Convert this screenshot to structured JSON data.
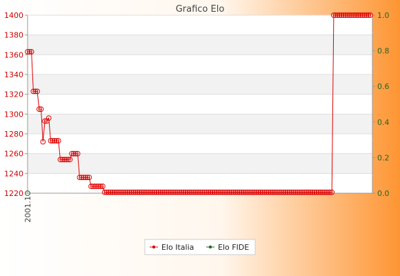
{
  "chart_data": {
    "type": "line",
    "title": "Grafico Elo",
    "legend_position": "bottom",
    "y_left": {
      "min": 1220,
      "max": 1400,
      "ticks": [
        "1220",
        "1240",
        "1260",
        "1280",
        "1300",
        "1320",
        "1340",
        "1360",
        "1380",
        "1400"
      ],
      "tick_color": "#cc0000"
    },
    "y_right": {
      "min": 0.0,
      "max": 1.0,
      "ticks": [
        "0.0",
        "0.2",
        "0.4",
        "0.6",
        "0.8",
        "1.0"
      ],
      "tick_color": "#226622"
    },
    "x_tick_labels": [
      "2001.1"
    ],
    "grid": true,
    "series": [
      {
        "name": "Elo Italia",
        "axis": "left",
        "color": "#dd0000",
        "values": [
          1363,
          1363,
          1363,
          1323,
          1323,
          1323,
          1305,
          1305,
          1272,
          1293,
          1293,
          1296,
          1273,
          1273,
          1273,
          1273,
          1273,
          1254,
          1254,
          1254,
          1254,
          1254,
          1254,
          1260,
          1260,
          1260,
          1260,
          1236,
          1236,
          1236,
          1236,
          1236,
          1236,
          1227,
          1227,
          1227,
          1227,
          1227,
          1227,
          1227,
          1221,
          1221,
          1221,
          1221,
          1221,
          1221,
          1221,
          1221,
          1221,
          1221,
          1221,
          1221,
          1221,
          1221,
          1221,
          1221,
          1221,
          1221,
          1221,
          1221,
          1221,
          1221,
          1221,
          1221,
          1221,
          1221,
          1221,
          1221,
          1221,
          1221,
          1221,
          1221,
          1221,
          1221,
          1221,
          1221,
          1221,
          1221,
          1221,
          1221,
          1221,
          1221,
          1221,
          1221,
          1221,
          1221,
          1221,
          1221,
          1221,
          1221,
          1221,
          1221,
          1221,
          1221,
          1221,
          1221,
          1221,
          1221,
          1221,
          1221,
          1221,
          1221,
          1221,
          1221,
          1221,
          1221,
          1221,
          1221,
          1221,
          1221,
          1221,
          1221,
          1221,
          1221,
          1221,
          1221,
          1221,
          1221,
          1221,
          1221,
          1221,
          1221,
          1221,
          1221,
          1221,
          1221,
          1221,
          1221,
          1221,
          1221,
          1221,
          1221,
          1221,
          1221,
          1221,
          1221,
          1221,
          1221,
          1221,
          1221,
          1221,
          1221,
          1221,
          1221,
          1221,
          1221,
          1221,
          1221,
          1221,
          1221,
          1221,
          1221,
          1221,
          1221,
          1221,
          1221,
          1221,
          1221,
          1221,
          1400,
          1400,
          1400,
          1400,
          1400,
          1400,
          1400,
          1400,
          1400,
          1400,
          1400,
          1400,
          1400,
          1400,
          1400,
          1400,
          1400,
          1400,
          1400,
          1400
        ]
      },
      {
        "name": "Elo FIDE",
        "axis": "right",
        "color": "#226622",
        "values": [
          0.0
        ]
      }
    ]
  }
}
